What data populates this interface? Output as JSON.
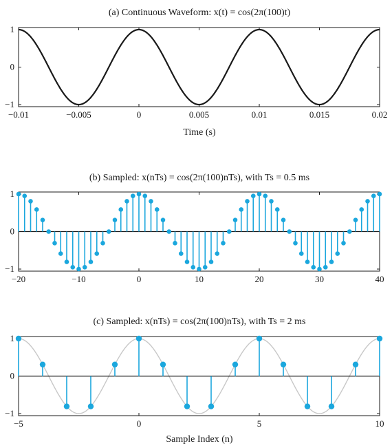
{
  "colors": {
    "stem": "#1ba7dd",
    "curve": "#1a1a1a",
    "envelope": "#c8c8c8",
    "axis": "#1a1a1a"
  },
  "chart_data": [
    {
      "type": "line",
      "title": "(a) Continuous Waveform: x(t) = cos(2π(100)t)",
      "xlabel": "Time (s)",
      "xlim": [
        -0.01,
        0.02
      ],
      "ylim": [
        -1,
        1
      ],
      "xticks": [
        "−0.01",
        "−0.005",
        "0",
        "0.005",
        "0.01",
        "0.015",
        "0.02"
      ],
      "xtick_values": [
        -0.01,
        -0.005,
        0,
        0.005,
        0.01,
        0.015,
        0.02
      ],
      "yticks": [
        "1",
        "0",
        "−1"
      ],
      "ytick_values": [
        1,
        0,
        -1
      ],
      "function": "cos(2*pi*100*t)",
      "frequency_hz": 100,
      "x": [
        -0.01,
        -0.0075,
        -0.005,
        -0.0025,
        0,
        0.0025,
        0.005,
        0.0075,
        0.01,
        0.0125,
        0.015,
        0.0175,
        0.02
      ],
      "y": [
        1,
        0,
        -1,
        0,
        1,
        0,
        -1,
        0,
        1,
        0,
        -1,
        0,
        1
      ]
    },
    {
      "type": "stem",
      "title": "(b) Sampled: x(nTs) = cos(2π(100)nTs), with Ts = 0.5 ms",
      "xlabel": "",
      "xlim": [
        -20,
        40
      ],
      "ylim": [
        -1,
        1
      ],
      "xticks": [
        "−20",
        "−10",
        "0",
        "10",
        "20",
        "30",
        "40"
      ],
      "xtick_values": [
        -20,
        -10,
        0,
        10,
        20,
        30,
        40
      ],
      "yticks": [
        "1",
        "0",
        "−1"
      ],
      "ytick_values": [
        1,
        0,
        -1
      ],
      "Ts_ms": 0.5,
      "n_range": [
        -20,
        40
      ],
      "values": [
        1,
        0.951,
        0.809,
        0.588,
        0.309,
        0,
        -0.309,
        -0.588,
        -0.809,
        -0.951,
        -1,
        -0.951,
        -0.809,
        -0.588,
        -0.309,
        0,
        0.309,
        0.588,
        0.809,
        0.951,
        1,
        0.951,
        0.809,
        0.588,
        0.309,
        0,
        -0.309,
        -0.588,
        -0.809,
        -0.951,
        -1,
        -0.951,
        -0.809,
        -0.588,
        -0.309,
        0,
        0.309,
        0.588,
        0.809,
        0.951,
        1,
        0.951,
        0.809,
        0.588,
        0.309,
        0,
        -0.309,
        -0.588,
        -0.809,
        -0.951,
        -1,
        -0.951,
        -0.809,
        -0.588,
        -0.309,
        0,
        0.309,
        0.588,
        0.809,
        0.951,
        1
      ]
    },
    {
      "type": "stem",
      "title": "(c) Sampled: x(nTs) = cos(2π(100)nTs), with Ts = 2 ms",
      "xlabel": "Sample Index (n)",
      "xlim": [
        -5,
        10
      ],
      "ylim": [
        -1,
        1
      ],
      "xticks": [
        "−5",
        "0",
        "5",
        "10"
      ],
      "xtick_values": [
        -5,
        0,
        5,
        10
      ],
      "yticks": [
        "1",
        "0",
        "−1"
      ],
      "ytick_values": [
        1,
        0,
        -1
      ],
      "Ts_ms": 2,
      "n_range": [
        -5,
        10
      ],
      "values": [
        1,
        0.309,
        -0.809,
        -0.809,
        0.309,
        1,
        0.309,
        -0.809,
        -0.809,
        0.309,
        1,
        0.309,
        -0.809,
        -0.809,
        0.309,
        1
      ],
      "underlying_curve": "cos(2*pi*n/5)"
    }
  ]
}
